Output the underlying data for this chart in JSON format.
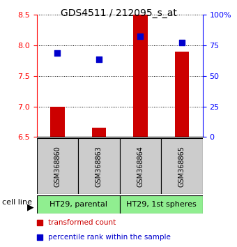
{
  "title": "GDS4511 / 212095_s_at",
  "samples": [
    "GSM368860",
    "GSM368863",
    "GSM368864",
    "GSM368865"
  ],
  "transformed_counts": [
    7.0,
    6.65,
    8.5,
    7.9
  ],
  "percentile_ranks": [
    7.88,
    7.77,
    8.15,
    8.05
  ],
  "ylim_left": [
    6.5,
    8.5
  ],
  "ylim_right": [
    0,
    100
  ],
  "yticks_left": [
    6.5,
    7.0,
    7.5,
    8.0,
    8.5
  ],
  "yticks_right": [
    0,
    25,
    50,
    75,
    100
  ],
  "ytick_labels_right": [
    "0",
    "25",
    "50",
    "75",
    "100%"
  ],
  "bar_color": "#cc0000",
  "dot_color": "#0000cc",
  "cell_lines": [
    "HT29, parental",
    "HT29, 1st spheres"
  ],
  "cell_line_colors": [
    "#90EE90",
    "#90EE90"
  ],
  "cell_line_spans": [
    [
      0,
      2
    ],
    [
      2,
      4
    ]
  ],
  "sample_label_bg": "#cccccc",
  "bar_bottom": 6.5,
  "bar_width": 0.35,
  "dot_size": 40,
  "legend_red_label": "transformed count",
  "legend_blue_label": "percentile rank within the sample"
}
